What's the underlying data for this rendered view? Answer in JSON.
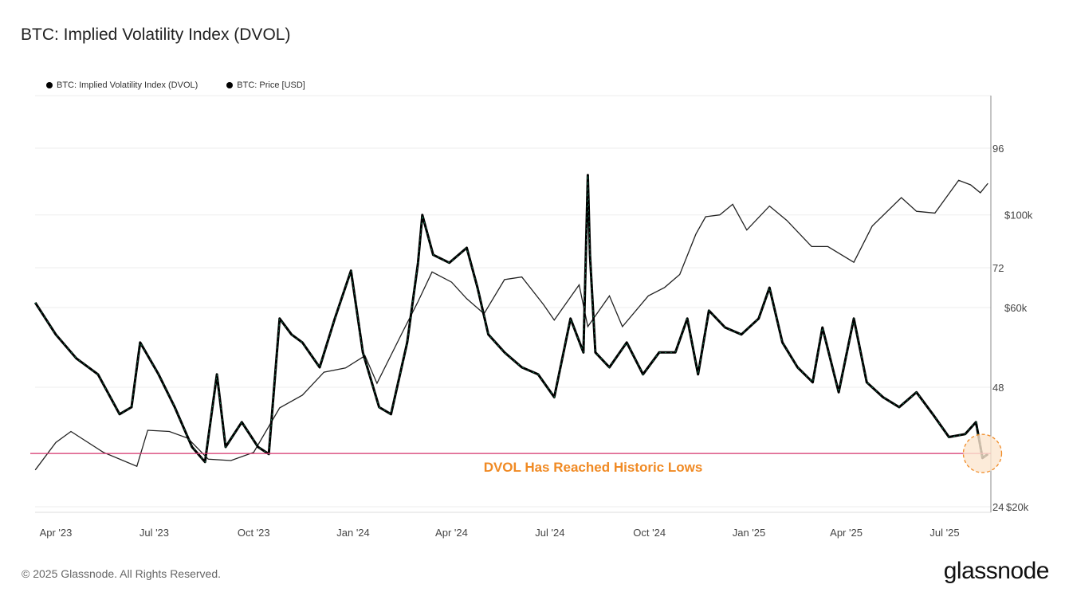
{
  "title": "BTC: Implied Volatility Index (DVOL)",
  "footer": "© 2025 Glassnode. All Rights Reserved.",
  "logo": "glassnode",
  "colors": {
    "dvol": "#000000",
    "dvol_accent": "#1f9d6a",
    "price": "#222222",
    "threshold": "#d6336c",
    "annotation": "#f08a24",
    "highlight_fill": "#fbe6d0"
  },
  "chart_data": {
    "type": "line",
    "title": "BTC: Implied Volatility Index (DVOL)",
    "legend": {
      "placement": "top-left",
      "entries": [
        "BTC: Implied Volatility Index (DVOL)",
        "BTC: Price [USD]"
      ]
    },
    "grid": true,
    "x_ticks": [
      "Apr '23",
      "Jul '23",
      "Oct '23",
      "Jan '24",
      "Apr '24",
      "Jul '24",
      "Oct '24",
      "Jan '25",
      "Apr '25",
      "Jul '25"
    ],
    "x_tick_dates": [
      "2023-04-01",
      "2023-07-01",
      "2023-10-01",
      "2024-01-01",
      "2024-04-01",
      "2024-07-01",
      "2024-10-01",
      "2025-01-01",
      "2025-04-01",
      "2025-07-01"
    ],
    "xlim": [
      "2023-03-13",
      "2025-08-12"
    ],
    "y_left": {
      "ticks": [
        24,
        48,
        72,
        96
      ],
      "tick_labels": [
        "24",
        "48",
        "72",
        "96"
      ],
      "range": [
        24,
        104
      ]
    },
    "y_right": {
      "scale": "log",
      "ticks": [
        20000,
        60000,
        100000
      ],
      "tick_labels": [
        "$20k",
        "$60k",
        "$100k"
      ]
    },
    "series": [
      {
        "name": "BTC: Implied Volatility Index (DVOL)",
        "axis": "left",
        "points": [
          [
            "2023-03-13",
            65
          ],
          [
            "2023-04-01",
            58.6
          ],
          [
            "2023-04-20",
            53.8
          ],
          [
            "2023-05-10",
            50.6
          ],
          [
            "2023-05-30",
            42.6
          ],
          [
            "2023-06-10",
            44
          ],
          [
            "2023-06-18",
            57
          ],
          [
            "2023-07-05",
            50.6
          ],
          [
            "2023-07-20",
            44
          ],
          [
            "2023-08-05",
            36
          ],
          [
            "2023-08-17",
            33
          ],
          [
            "2023-08-28",
            50.6
          ],
          [
            "2023-09-05",
            36
          ],
          [
            "2023-09-20",
            41
          ],
          [
            "2023-10-05",
            36
          ],
          [
            "2023-10-15",
            34.6
          ],
          [
            "2023-10-25",
            61.8
          ],
          [
            "2023-11-05",
            58.6
          ],
          [
            "2023-11-15",
            57
          ],
          [
            "2023-12-01",
            52
          ],
          [
            "2023-12-15",
            61.8
          ],
          [
            "2023-12-30",
            71.4
          ],
          [
            "2024-01-10",
            55
          ],
          [
            "2024-01-25",
            44
          ],
          [
            "2024-02-05",
            42.6
          ],
          [
            "2024-02-20",
            57
          ],
          [
            "2024-03-01",
            73
          ],
          [
            "2024-03-05",
            82.6
          ],
          [
            "2024-03-15",
            74.6
          ],
          [
            "2024-03-30",
            73
          ],
          [
            "2024-04-15",
            76
          ],
          [
            "2024-04-25",
            68
          ],
          [
            "2024-05-05",
            58.6
          ],
          [
            "2024-05-20",
            55
          ],
          [
            "2024-06-05",
            52
          ],
          [
            "2024-06-20",
            50.6
          ],
          [
            "2024-07-05",
            46
          ],
          [
            "2024-07-20",
            61.8
          ],
          [
            "2024-08-01",
            55
          ],
          [
            "2024-08-05",
            90.6
          ],
          [
            "2024-08-07",
            74.6
          ],
          [
            "2024-08-12",
            55
          ],
          [
            "2024-08-25",
            52
          ],
          [
            "2024-09-10",
            57
          ],
          [
            "2024-09-25",
            50.6
          ],
          [
            "2024-10-10",
            55
          ],
          [
            "2024-10-25",
            55
          ],
          [
            "2024-11-05",
            61.8
          ],
          [
            "2024-11-15",
            50.6
          ],
          [
            "2024-11-25",
            63.4
          ],
          [
            "2024-12-10",
            60
          ],
          [
            "2024-12-25",
            58.6
          ],
          [
            "2025-01-10",
            61.8
          ],
          [
            "2025-01-20",
            68
          ],
          [
            "2025-02-01",
            57
          ],
          [
            "2025-02-15",
            52
          ],
          [
            "2025-03-01",
            49
          ],
          [
            "2025-03-10",
            60
          ],
          [
            "2025-03-25",
            47
          ],
          [
            "2025-04-08",
            61.8
          ],
          [
            "2025-04-20",
            49
          ],
          [
            "2025-05-05",
            46
          ],
          [
            "2025-05-20",
            44
          ],
          [
            "2025-06-05",
            47
          ],
          [
            "2025-06-20",
            42.6
          ],
          [
            "2025-07-05",
            38
          ],
          [
            "2025-07-20",
            38.6
          ],
          [
            "2025-07-30",
            41
          ],
          [
            "2025-08-05",
            33.8
          ],
          [
            "2025-08-10",
            34.6
          ]
        ]
      },
      {
        "name": "BTC: Price [USD]",
        "axis": "right",
        "points": [
          [
            "2023-03-13",
            24500
          ],
          [
            "2023-04-01",
            28500
          ],
          [
            "2023-04-15",
            30300
          ],
          [
            "2023-05-15",
            27000
          ],
          [
            "2023-06-15",
            25000
          ],
          [
            "2023-06-25",
            30500
          ],
          [
            "2023-07-15",
            30300
          ],
          [
            "2023-08-01",
            29200
          ],
          [
            "2023-08-20",
            26000
          ],
          [
            "2023-09-10",
            25800
          ],
          [
            "2023-10-01",
            27000
          ],
          [
            "2023-10-25",
            34500
          ],
          [
            "2023-11-15",
            37000
          ],
          [
            "2023-12-05",
            42000
          ],
          [
            "2023-12-25",
            43000
          ],
          [
            "2024-01-12",
            46000
          ],
          [
            "2024-01-23",
            39500
          ],
          [
            "2024-02-15",
            52000
          ],
          [
            "2024-03-01",
            62000
          ],
          [
            "2024-03-14",
            73000
          ],
          [
            "2024-04-01",
            69000
          ],
          [
            "2024-04-15",
            63000
          ],
          [
            "2024-05-01",
            58000
          ],
          [
            "2024-05-20",
            70000
          ],
          [
            "2024-06-05",
            71000
          ],
          [
            "2024-06-25",
            61000
          ],
          [
            "2024-07-05",
            56000
          ],
          [
            "2024-07-28",
            68000
          ],
          [
            "2024-08-05",
            54000
          ],
          [
            "2024-08-25",
            64000
          ],
          [
            "2024-09-06",
            54000
          ],
          [
            "2024-09-30",
            64000
          ],
          [
            "2024-10-15",
            67000
          ],
          [
            "2024-10-29",
            72000
          ],
          [
            "2024-11-13",
            90000
          ],
          [
            "2024-11-22",
            99000
          ],
          [
            "2024-12-05",
            100000
          ],
          [
            "2024-12-17",
            106000
          ],
          [
            "2024-12-30",
            92000
          ],
          [
            "2025-01-20",
            105000
          ],
          [
            "2025-02-05",
            97000
          ],
          [
            "2025-02-28",
            84000
          ],
          [
            "2025-03-15",
            84000
          ],
          [
            "2025-04-08",
            77000
          ],
          [
            "2025-04-25",
            94000
          ],
          [
            "2025-05-22",
            110000
          ],
          [
            "2025-06-05",
            102000
          ],
          [
            "2025-06-22",
            101000
          ],
          [
            "2025-07-14",
            121000
          ],
          [
            "2025-07-25",
            118000
          ],
          [
            "2025-08-03",
            113000
          ],
          [
            "2025-08-10",
            119000
          ]
        ]
      }
    ],
    "threshold": {
      "axis": "left",
      "value": 34.7
    },
    "annotations": [
      {
        "text": "DVOL Has Reached Historic Lows",
        "date": "2025-08-05",
        "value": 34.7,
        "marker": "dashed-circle"
      }
    ]
  }
}
